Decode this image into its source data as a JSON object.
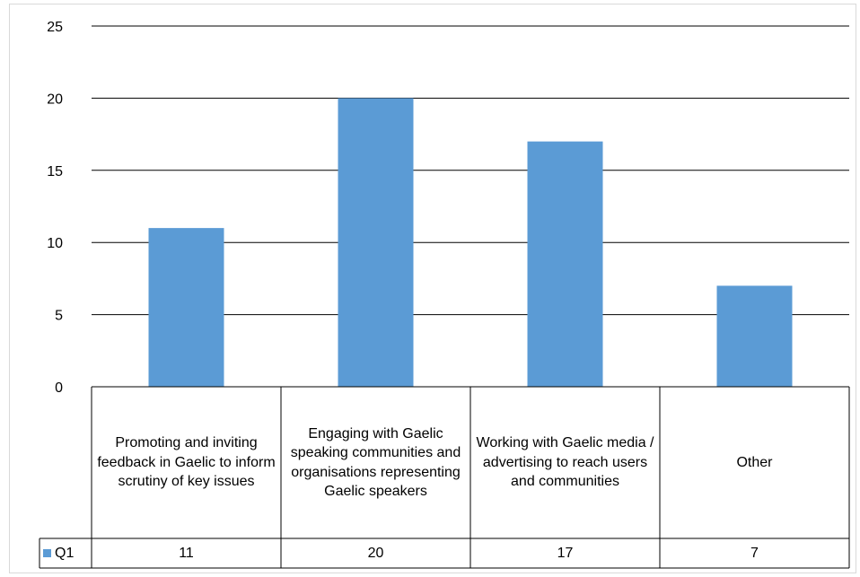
{
  "chart_data": {
    "type": "bar",
    "categories": [
      "Promoting and inviting feedback in Gaelic to inform scrutiny of key issues",
      "Engaging with Gaelic speaking communities and organisations representing Gaelic speakers",
      "Working with Gaelic media / advertising to reach users and communities",
      "Other"
    ],
    "series": [
      {
        "name": "Q1",
        "values": [
          11,
          20,
          17,
          7
        ],
        "value_labels": [
          "11",
          "20",
          "17",
          "7"
        ]
      }
    ],
    "ylim": [
      0,
      25
    ],
    "yticks": [
      0,
      5,
      10,
      15,
      20,
      25
    ],
    "ytick_labels": [
      "0",
      "5",
      "10",
      "15",
      "20",
      "25"
    ],
    "grid": true,
    "legend": "data-table",
    "colors": {
      "bar": "#5b9bd5",
      "grid": "#000000",
      "frame": "#d9d9d9"
    }
  }
}
